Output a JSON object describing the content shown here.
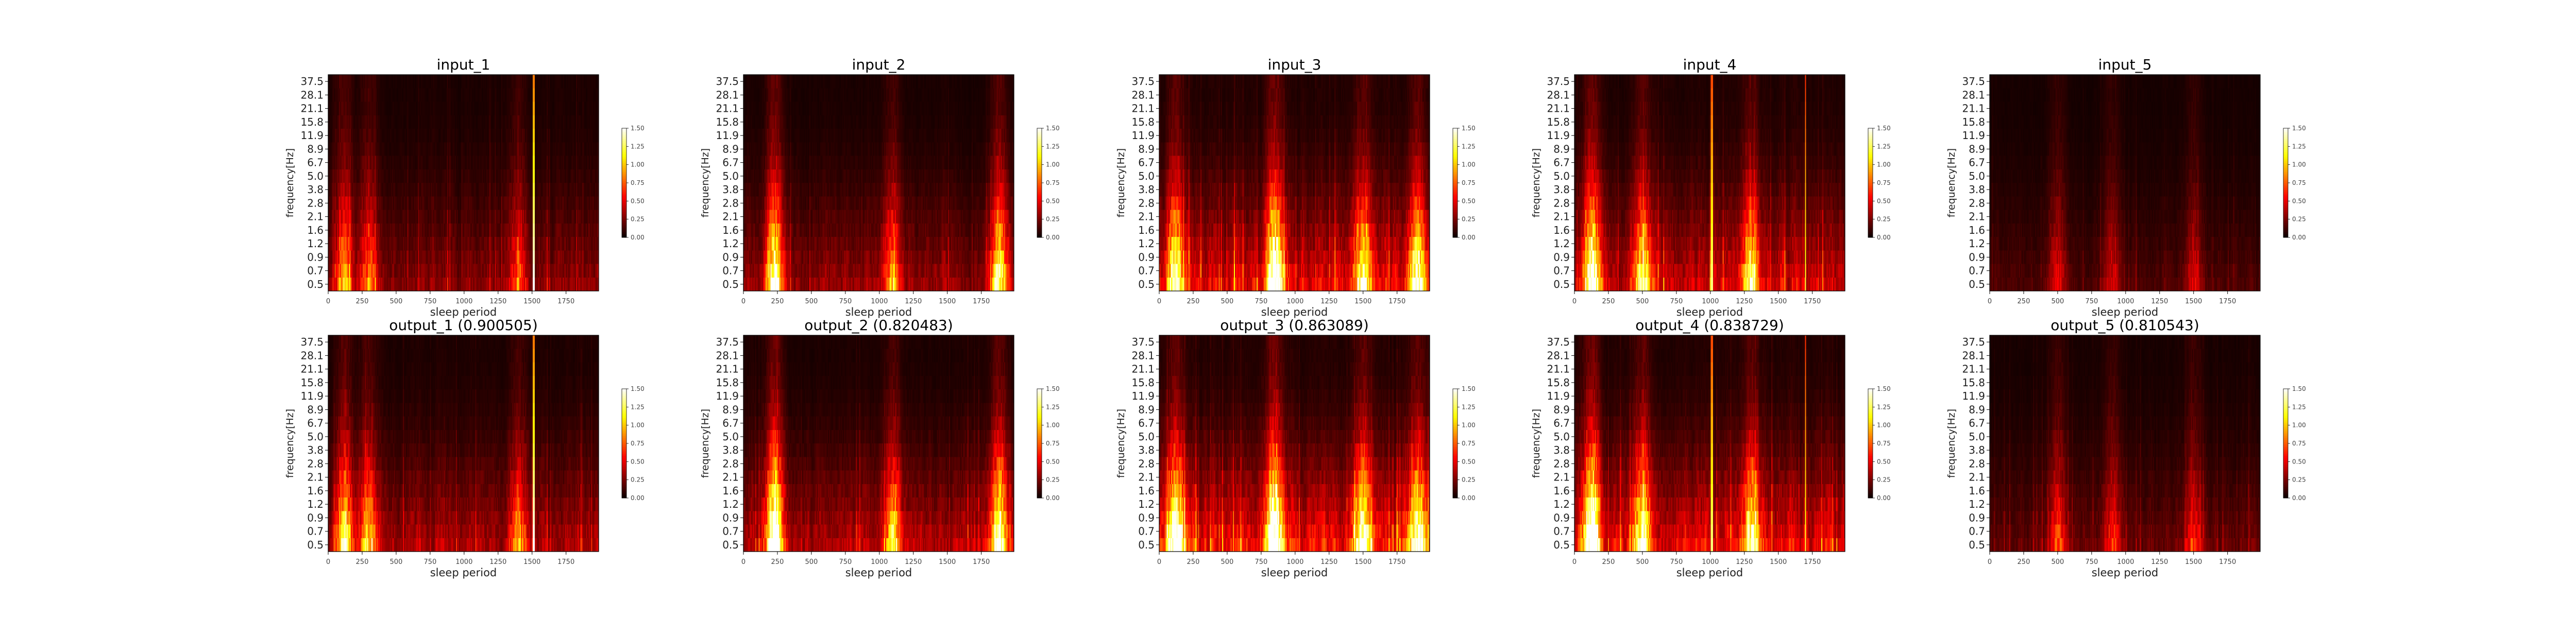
{
  "chart_data": [
    {
      "type": "heatmap",
      "title": "input_1",
      "xlabel": "sleep period",
      "ylabel": "frequency[Hz]",
      "xticks": [
        "0",
        "250",
        "500",
        "750",
        "1000",
        "1250",
        "1500",
        "1750"
      ],
      "xlim": [
        0,
        1990
      ],
      "yticks": [
        "37.5",
        "28.1",
        "21.1",
        "15.8",
        "11.9",
        "8.9",
        "6.7",
        "5.0",
        "3.8",
        "2.8",
        "2.1",
        "1.6",
        "1.2",
        "0.9",
        "0.7",
        "0.5"
      ],
      "colorbar": {
        "ticks": [
          "1.50",
          "1.25",
          "1.00",
          "0.75",
          "0.50",
          "0.25",
          "0.00"
        ],
        "range": [
          0,
          1.5
        ]
      },
      "colormap": "hot",
      "pattern": {
        "seed": 11,
        "base": 0.32,
        "low_boost": 0.75,
        "hot_columns": [
          {
            "x": 1510,
            "value": 1.5
          }
        ],
        "peaks": [
          {
            "x": 120,
            "value": 0.9
          },
          {
            "x": 300,
            "value": 0.7
          },
          {
            "x": 1400,
            "value": 0.6
          }
        ]
      }
    },
    {
      "type": "heatmap",
      "title": "input_2",
      "xlabel": "sleep period",
      "ylabel": "frequency[Hz]",
      "xticks": [
        "0",
        "250",
        "500",
        "750",
        "1000",
        "1250",
        "1500",
        "1750"
      ],
      "xlim": [
        0,
        1990
      ],
      "yticks": [
        "37.5",
        "28.1",
        "21.1",
        "15.8",
        "11.9",
        "8.9",
        "6.7",
        "5.0",
        "3.8",
        "2.8",
        "2.1",
        "1.6",
        "1.2",
        "0.9",
        "0.7",
        "0.5"
      ],
      "colorbar": {
        "ticks": [
          "1.50",
          "1.25",
          "1.00",
          "0.75",
          "0.50",
          "0.25",
          "0.00"
        ],
        "range": [
          0,
          1.5
        ]
      },
      "colormap": "hot",
      "pattern": {
        "seed": 23,
        "base": 0.3,
        "low_boost": 0.9,
        "hot_columns": [],
        "peaks": [
          {
            "x": 230,
            "value": 1.3
          },
          {
            "x": 1880,
            "value": 1.1
          },
          {
            "x": 1100,
            "value": 0.7
          }
        ]
      }
    },
    {
      "type": "heatmap",
      "title": "input_3",
      "xlabel": "sleep period",
      "ylabel": "frequency[Hz]",
      "xticks": [
        "0",
        "250",
        "500",
        "750",
        "1000",
        "1250",
        "1500",
        "1750"
      ],
      "xlim": [
        0,
        1990
      ],
      "yticks": [
        "37.5",
        "28.1",
        "21.1",
        "15.8",
        "11.9",
        "8.9",
        "6.7",
        "5.0",
        "3.8",
        "2.8",
        "2.1",
        "1.6",
        "1.2",
        "0.9",
        "0.7",
        "0.5"
      ],
      "colorbar": {
        "ticks": [
          "1.50",
          "1.25",
          "1.00",
          "0.75",
          "0.50",
          "0.25",
          "0.00"
        ],
        "range": [
          0,
          1.5
        ]
      },
      "colormap": "hot",
      "pattern": {
        "seed": 37,
        "base": 0.45,
        "low_boost": 1.0,
        "hot_columns": [],
        "peaks": [
          {
            "x": 120,
            "value": 1.0
          },
          {
            "x": 850,
            "value": 1.3
          },
          {
            "x": 1500,
            "value": 0.9
          },
          {
            "x": 1900,
            "value": 1.0
          }
        ]
      }
    },
    {
      "type": "heatmap",
      "title": "input_4",
      "xlabel": "sleep period",
      "ylabel": "frequency[Hz]",
      "xticks": [
        "0",
        "250",
        "500",
        "750",
        "1000",
        "1250",
        "1500",
        "1750"
      ],
      "xlim": [
        0,
        1990
      ],
      "yticks": [
        "37.5",
        "28.1",
        "21.1",
        "15.8",
        "11.9",
        "8.9",
        "6.7",
        "5.0",
        "3.8",
        "2.8",
        "2.1",
        "1.6",
        "1.2",
        "0.9",
        "0.7",
        "0.5"
      ],
      "colorbar": {
        "ticks": [
          "1.50",
          "1.25",
          "1.00",
          "0.75",
          "0.50",
          "0.25",
          "0.00"
        ],
        "range": [
          0,
          1.5
        ]
      },
      "colormap": "hot",
      "pattern": {
        "seed": 53,
        "base": 0.42,
        "low_boost": 0.95,
        "hot_columns": [
          {
            "x": 1010,
            "value": 1.3
          },
          {
            "x": 1700,
            "value": 1.2
          }
        ],
        "peaks": [
          {
            "x": 130,
            "value": 1.3
          },
          {
            "x": 500,
            "value": 0.9
          },
          {
            "x": 1300,
            "value": 0.8
          }
        ]
      }
    },
    {
      "type": "heatmap",
      "title": "input_5",
      "xlabel": "sleep period",
      "ylabel": "frequency[Hz]",
      "xticks": [
        "0",
        "250",
        "500",
        "750",
        "1000",
        "1250",
        "1500",
        "1750"
      ],
      "xlim": [
        0,
        1990
      ],
      "yticks": [
        "37.5",
        "28.1",
        "21.1",
        "15.8",
        "11.9",
        "8.9",
        "6.7",
        "5.0",
        "3.8",
        "2.8",
        "2.1",
        "1.6",
        "1.2",
        "0.9",
        "0.7",
        "0.5"
      ],
      "colorbar": {
        "ticks": [
          "1.50",
          "1.25",
          "1.00",
          "0.75",
          "0.50",
          "0.25",
          "0.00"
        ],
        "range": [
          0,
          1.5
        ]
      },
      "colormap": "hot",
      "pattern": {
        "seed": 71,
        "base": 0.22,
        "low_boost": 0.55,
        "hot_columns": [],
        "peaks": [
          {
            "x": 500,
            "value": 0.6
          },
          {
            "x": 900,
            "value": 0.5
          },
          {
            "x": 1500,
            "value": 0.5
          }
        ]
      }
    },
    {
      "type": "heatmap",
      "title": "output_1 (0.900505)",
      "xlabel": "sleep period",
      "ylabel": "frequency[Hz]",
      "xticks": [
        "0",
        "250",
        "500",
        "750",
        "1000",
        "1250",
        "1500",
        "1750"
      ],
      "xlim": [
        0,
        1990
      ],
      "yticks": [
        "37.5",
        "28.1",
        "21.1",
        "15.8",
        "11.9",
        "8.9",
        "6.7",
        "5.0",
        "3.8",
        "2.8",
        "2.1",
        "1.6",
        "1.2",
        "0.9",
        "0.7",
        "0.5"
      ],
      "colorbar": {
        "ticks": [
          "1.50",
          "1.25",
          "1.00",
          "0.75",
          "0.50",
          "0.25",
          "0.00"
        ],
        "range": [
          0,
          1.5
        ]
      },
      "colormap": "hot",
      "pattern": {
        "seed": 12,
        "base": 0.36,
        "low_boost": 0.85,
        "hot_columns": [
          {
            "x": 1510,
            "value": 1.5
          }
        ],
        "peaks": [
          {
            "x": 120,
            "value": 1.0
          },
          {
            "x": 300,
            "value": 0.8
          },
          {
            "x": 1400,
            "value": 0.7
          }
        ]
      }
    },
    {
      "type": "heatmap",
      "title": "output_2 (0.820483)",
      "xlabel": "sleep period",
      "ylabel": "frequency[Hz]",
      "xticks": [
        "0",
        "250",
        "500",
        "750",
        "1000",
        "1250",
        "1500",
        "1750"
      ],
      "xlim": [
        0,
        1990
      ],
      "yticks": [
        "37.5",
        "28.1",
        "21.1",
        "15.8",
        "11.9",
        "8.9",
        "6.7",
        "5.0",
        "3.8",
        "2.8",
        "2.1",
        "1.6",
        "1.2",
        "0.9",
        "0.7",
        "0.5"
      ],
      "colorbar": {
        "ticks": [
          "1.50",
          "1.25",
          "1.00",
          "0.75",
          "0.50",
          "0.25",
          "0.00"
        ],
        "range": [
          0,
          1.5
        ]
      },
      "colormap": "hot",
      "pattern": {
        "seed": 24,
        "base": 0.34,
        "low_boost": 1.0,
        "hot_columns": [],
        "peaks": [
          {
            "x": 230,
            "value": 1.4
          },
          {
            "x": 1880,
            "value": 1.2
          },
          {
            "x": 1100,
            "value": 0.8
          }
        ]
      }
    },
    {
      "type": "heatmap",
      "title": "output_3 (0.863089)",
      "xlabel": "sleep period",
      "ylabel": "frequency[Hz]",
      "xticks": [
        "0",
        "250",
        "500",
        "750",
        "1000",
        "1250",
        "1500",
        "1750"
      ],
      "xlim": [
        0,
        1990
      ],
      "yticks": [
        "37.5",
        "28.1",
        "21.1",
        "15.8",
        "11.9",
        "8.9",
        "6.7",
        "5.0",
        "3.8",
        "2.8",
        "2.1",
        "1.6",
        "1.2",
        "0.9",
        "0.7",
        "0.5"
      ],
      "colorbar": {
        "ticks": [
          "1.50",
          "1.25",
          "1.00",
          "0.75",
          "0.50",
          "0.25",
          "0.00"
        ],
        "range": [
          0,
          1.5
        ]
      },
      "colormap": "hot",
      "pattern": {
        "seed": 38,
        "base": 0.48,
        "low_boost": 1.05,
        "hot_columns": [],
        "peaks": [
          {
            "x": 120,
            "value": 1.1
          },
          {
            "x": 850,
            "value": 1.3
          },
          {
            "x": 1500,
            "value": 1.0
          },
          {
            "x": 1900,
            "value": 1.0
          }
        ]
      }
    },
    {
      "type": "heatmap",
      "title": "output_4 (0.838729)",
      "xlabel": "sleep period",
      "ylabel": "frequency[Hz]",
      "xticks": [
        "0",
        "250",
        "500",
        "750",
        "1000",
        "1250",
        "1500",
        "1750"
      ],
      "xlim": [
        0,
        1990
      ],
      "yticks": [
        "37.5",
        "28.1",
        "21.1",
        "15.8",
        "11.9",
        "8.9",
        "6.7",
        "5.0",
        "3.8",
        "2.8",
        "2.1",
        "1.6",
        "1.2",
        "0.9",
        "0.7",
        "0.5"
      ],
      "colorbar": {
        "ticks": [
          "1.50",
          "1.25",
          "1.00",
          "0.75",
          "0.50",
          "0.25",
          "0.00"
        ],
        "range": [
          0,
          1.5
        ]
      },
      "colormap": "hot",
      "pattern": {
        "seed": 54,
        "base": 0.45,
        "low_boost": 1.0,
        "hot_columns": [
          {
            "x": 1010,
            "value": 1.3
          },
          {
            "x": 1700,
            "value": 1.2
          }
        ],
        "peaks": [
          {
            "x": 130,
            "value": 1.4
          },
          {
            "x": 500,
            "value": 1.0
          },
          {
            "x": 1300,
            "value": 0.9
          }
        ]
      }
    },
    {
      "type": "heatmap",
      "title": "output_5 (0.810543)",
      "xlabel": "sleep period",
      "ylabel": "frequency[Hz]",
      "xticks": [
        "0",
        "250",
        "500",
        "750",
        "1000",
        "1250",
        "1500",
        "1750"
      ],
      "xlim": [
        0,
        1990
      ],
      "yticks": [
        "37.5",
        "28.1",
        "21.1",
        "15.8",
        "11.9",
        "8.9",
        "6.7",
        "5.0",
        "3.8",
        "2.8",
        "2.1",
        "1.6",
        "1.2",
        "0.9",
        "0.7",
        "0.5"
      ],
      "colorbar": {
        "ticks": [
          "1.50",
          "1.25",
          "1.00",
          "0.75",
          "0.50",
          "0.25",
          "0.00"
        ],
        "range": [
          0,
          1.5
        ]
      },
      "colormap": "hot",
      "pattern": {
        "seed": 72,
        "base": 0.26,
        "low_boost": 0.65,
        "hot_columns": [],
        "peaks": [
          {
            "x": 500,
            "value": 0.7
          },
          {
            "x": 900,
            "value": 0.6
          },
          {
            "x": 1500,
            "value": 0.6
          }
        ]
      }
    }
  ]
}
